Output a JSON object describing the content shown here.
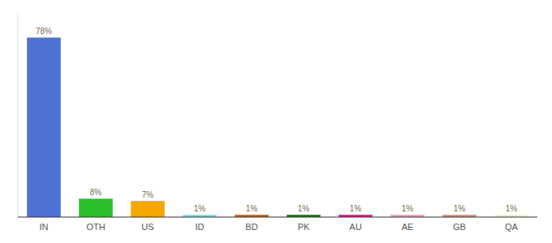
{
  "chart_data": {
    "type": "bar",
    "categories": [
      "IN",
      "OTH",
      "US",
      "ID",
      "BD",
      "PK",
      "AU",
      "AE",
      "GB",
      "QA"
    ],
    "values": [
      78,
      8,
      7,
      1,
      1,
      1,
      1,
      1,
      1,
      1
    ],
    "value_labels": [
      "78%",
      "8%",
      "7%",
      "1%",
      "1%",
      "1%",
      "1%",
      "1%",
      "1%",
      "1%"
    ],
    "colors": [
      "#4d72d4",
      "#2dbe2d",
      "#f5a800",
      "#7dd8ee",
      "#c8621a",
      "#1a7a1a",
      "#e8158a",
      "#e8a0c0",
      "#d4907a",
      "#f0f0d0"
    ],
    "ylim": [
      0,
      88
    ],
    "grid": false,
    "data_labels": true,
    "tick_labels": "x"
  }
}
